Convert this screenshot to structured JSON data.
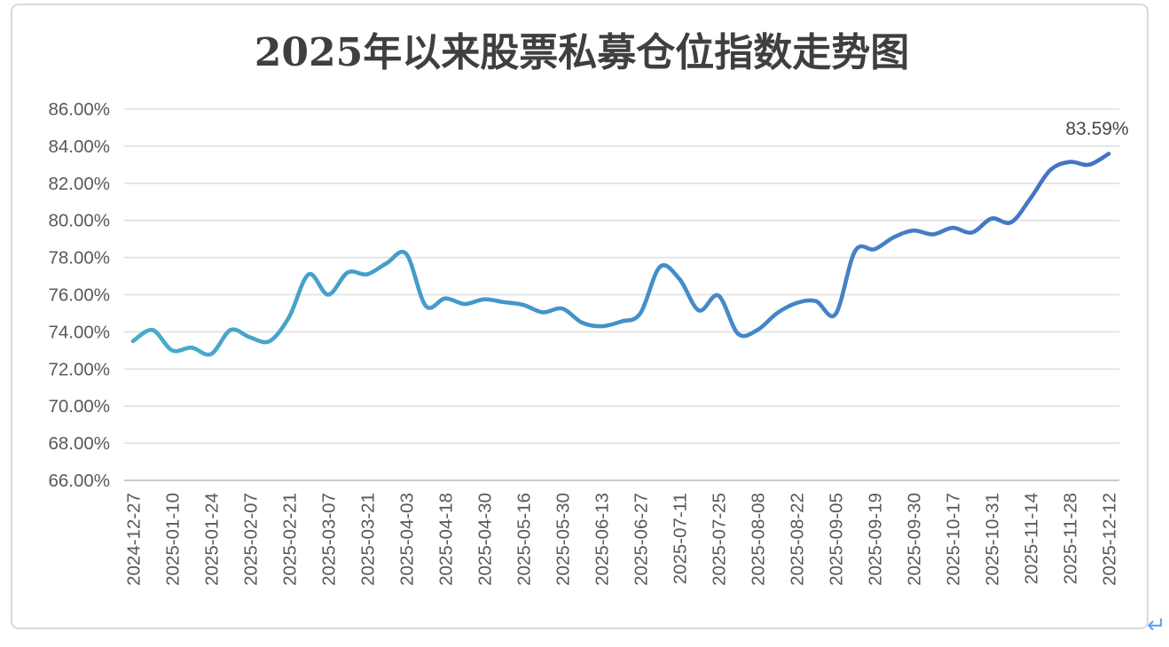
{
  "page": {
    "return_mark": "↵"
  },
  "chart_data": {
    "type": "line",
    "title": "2025年以来股票私募仓位指数走势图",
    "end_label": "83.59%",
    "legend": "none",
    "grid": true,
    "ylim": [
      66,
      86
    ],
    "y_tick_labels": [
      "86.00%",
      "84.00%",
      "82.00%",
      "80.00%",
      "78.00%",
      "76.00%",
      "74.00%",
      "72.00%",
      "70.00%",
      "68.00%",
      "66.00%"
    ],
    "x_tick_labels": [
      "2024-12-27",
      "2025-01-10",
      "2025-01-24",
      "2025-02-07",
      "2025-02-21",
      "2025-03-07",
      "2025-03-21",
      "2025-04-03",
      "2025-04-18",
      "2025-04-30",
      "2025-05-16",
      "2025-05-30",
      "2025-06-13",
      "2025-06-27",
      "2025-07-11",
      "2025-07-25",
      "2025-08-08",
      "2025-08-22",
      "2025-09-05",
      "2025-09-19",
      "2025-09-30",
      "2025-10-17",
      "2025-10-31",
      "2025-11-14",
      "2025-11-28",
      "2025-12-12"
    ],
    "points_per_tick": 2,
    "values": [
      73.5,
      74.1,
      73.0,
      73.15,
      72.8,
      74.1,
      73.7,
      73.5,
      74.8,
      77.1,
      76.0,
      77.2,
      77.1,
      77.7,
      78.2,
      75.4,
      75.8,
      75.5,
      75.75,
      75.6,
      75.45,
      75.05,
      75.25,
      74.5,
      74.3,
      74.55,
      75.0,
      77.5,
      76.85,
      75.15,
      75.95,
      73.9,
      74.1,
      75.0,
      75.55,
      75.65,
      74.95,
      78.35,
      78.45,
      79.1,
      79.45,
      79.25,
      79.6,
      79.35,
      80.1,
      79.9,
      81.2,
      82.7,
      83.15,
      83.0,
      83.59
    ],
    "colors": {
      "line_gradient_start": "#45ADCB",
      "line_gradient_end": "#4472C4",
      "gridline": "#E0E0E0",
      "axis_line": "#C9C9C9",
      "axis_text": "#595959",
      "title_text": "#3F3F3F",
      "end_label_text": "#474747",
      "border": "#D9D9D9",
      "return_mark": "#58A5F8"
    }
  }
}
